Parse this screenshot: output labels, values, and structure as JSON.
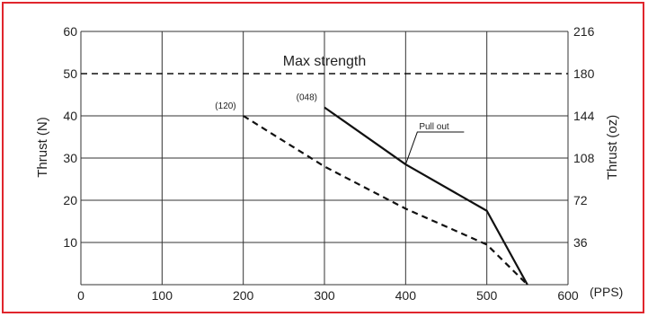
{
  "chart_data": {
    "type": "line",
    "xlabel": "",
    "x_unit": "(PPS)",
    "ylabel": "Thrust (N)",
    "ylabel_right": "Thrust (oz)",
    "xlim": [
      0,
      600
    ],
    "ylim": [
      0,
      60
    ],
    "x_ticks": [
      "0",
      "100",
      "200",
      "300",
      "400",
      "500",
      "600"
    ],
    "y_ticks": [
      "10",
      "20",
      "30",
      "40",
      "50",
      "60"
    ],
    "y_right_ticks": [
      "36",
      "72",
      "108",
      "144",
      "180",
      "216"
    ],
    "grid": true,
    "series": [
      {
        "name": "",
        "style": "solid",
        "start_label": "(048)",
        "points": [
          [
            300,
            42
          ],
          [
            400,
            28.5
          ],
          [
            500,
            17.5
          ],
          [
            550,
            0
          ]
        ]
      },
      {
        "name": "",
        "style": "dashed",
        "start_label": "(120)",
        "points": [
          [
            200,
            40
          ],
          [
            300,
            28
          ],
          [
            400,
            18
          ],
          [
            500,
            9.5
          ],
          [
            550,
            0
          ]
        ]
      }
    ],
    "reference_line": {
      "label": "Max strength",
      "y": 50,
      "style": "dashed"
    },
    "annotations": [
      {
        "text": "Pull out",
        "points_to": [
          400,
          28.5
        ]
      }
    ],
    "colors": {
      "line": "#111111",
      "grid": "#333333",
      "frame": "#e0262d"
    }
  }
}
